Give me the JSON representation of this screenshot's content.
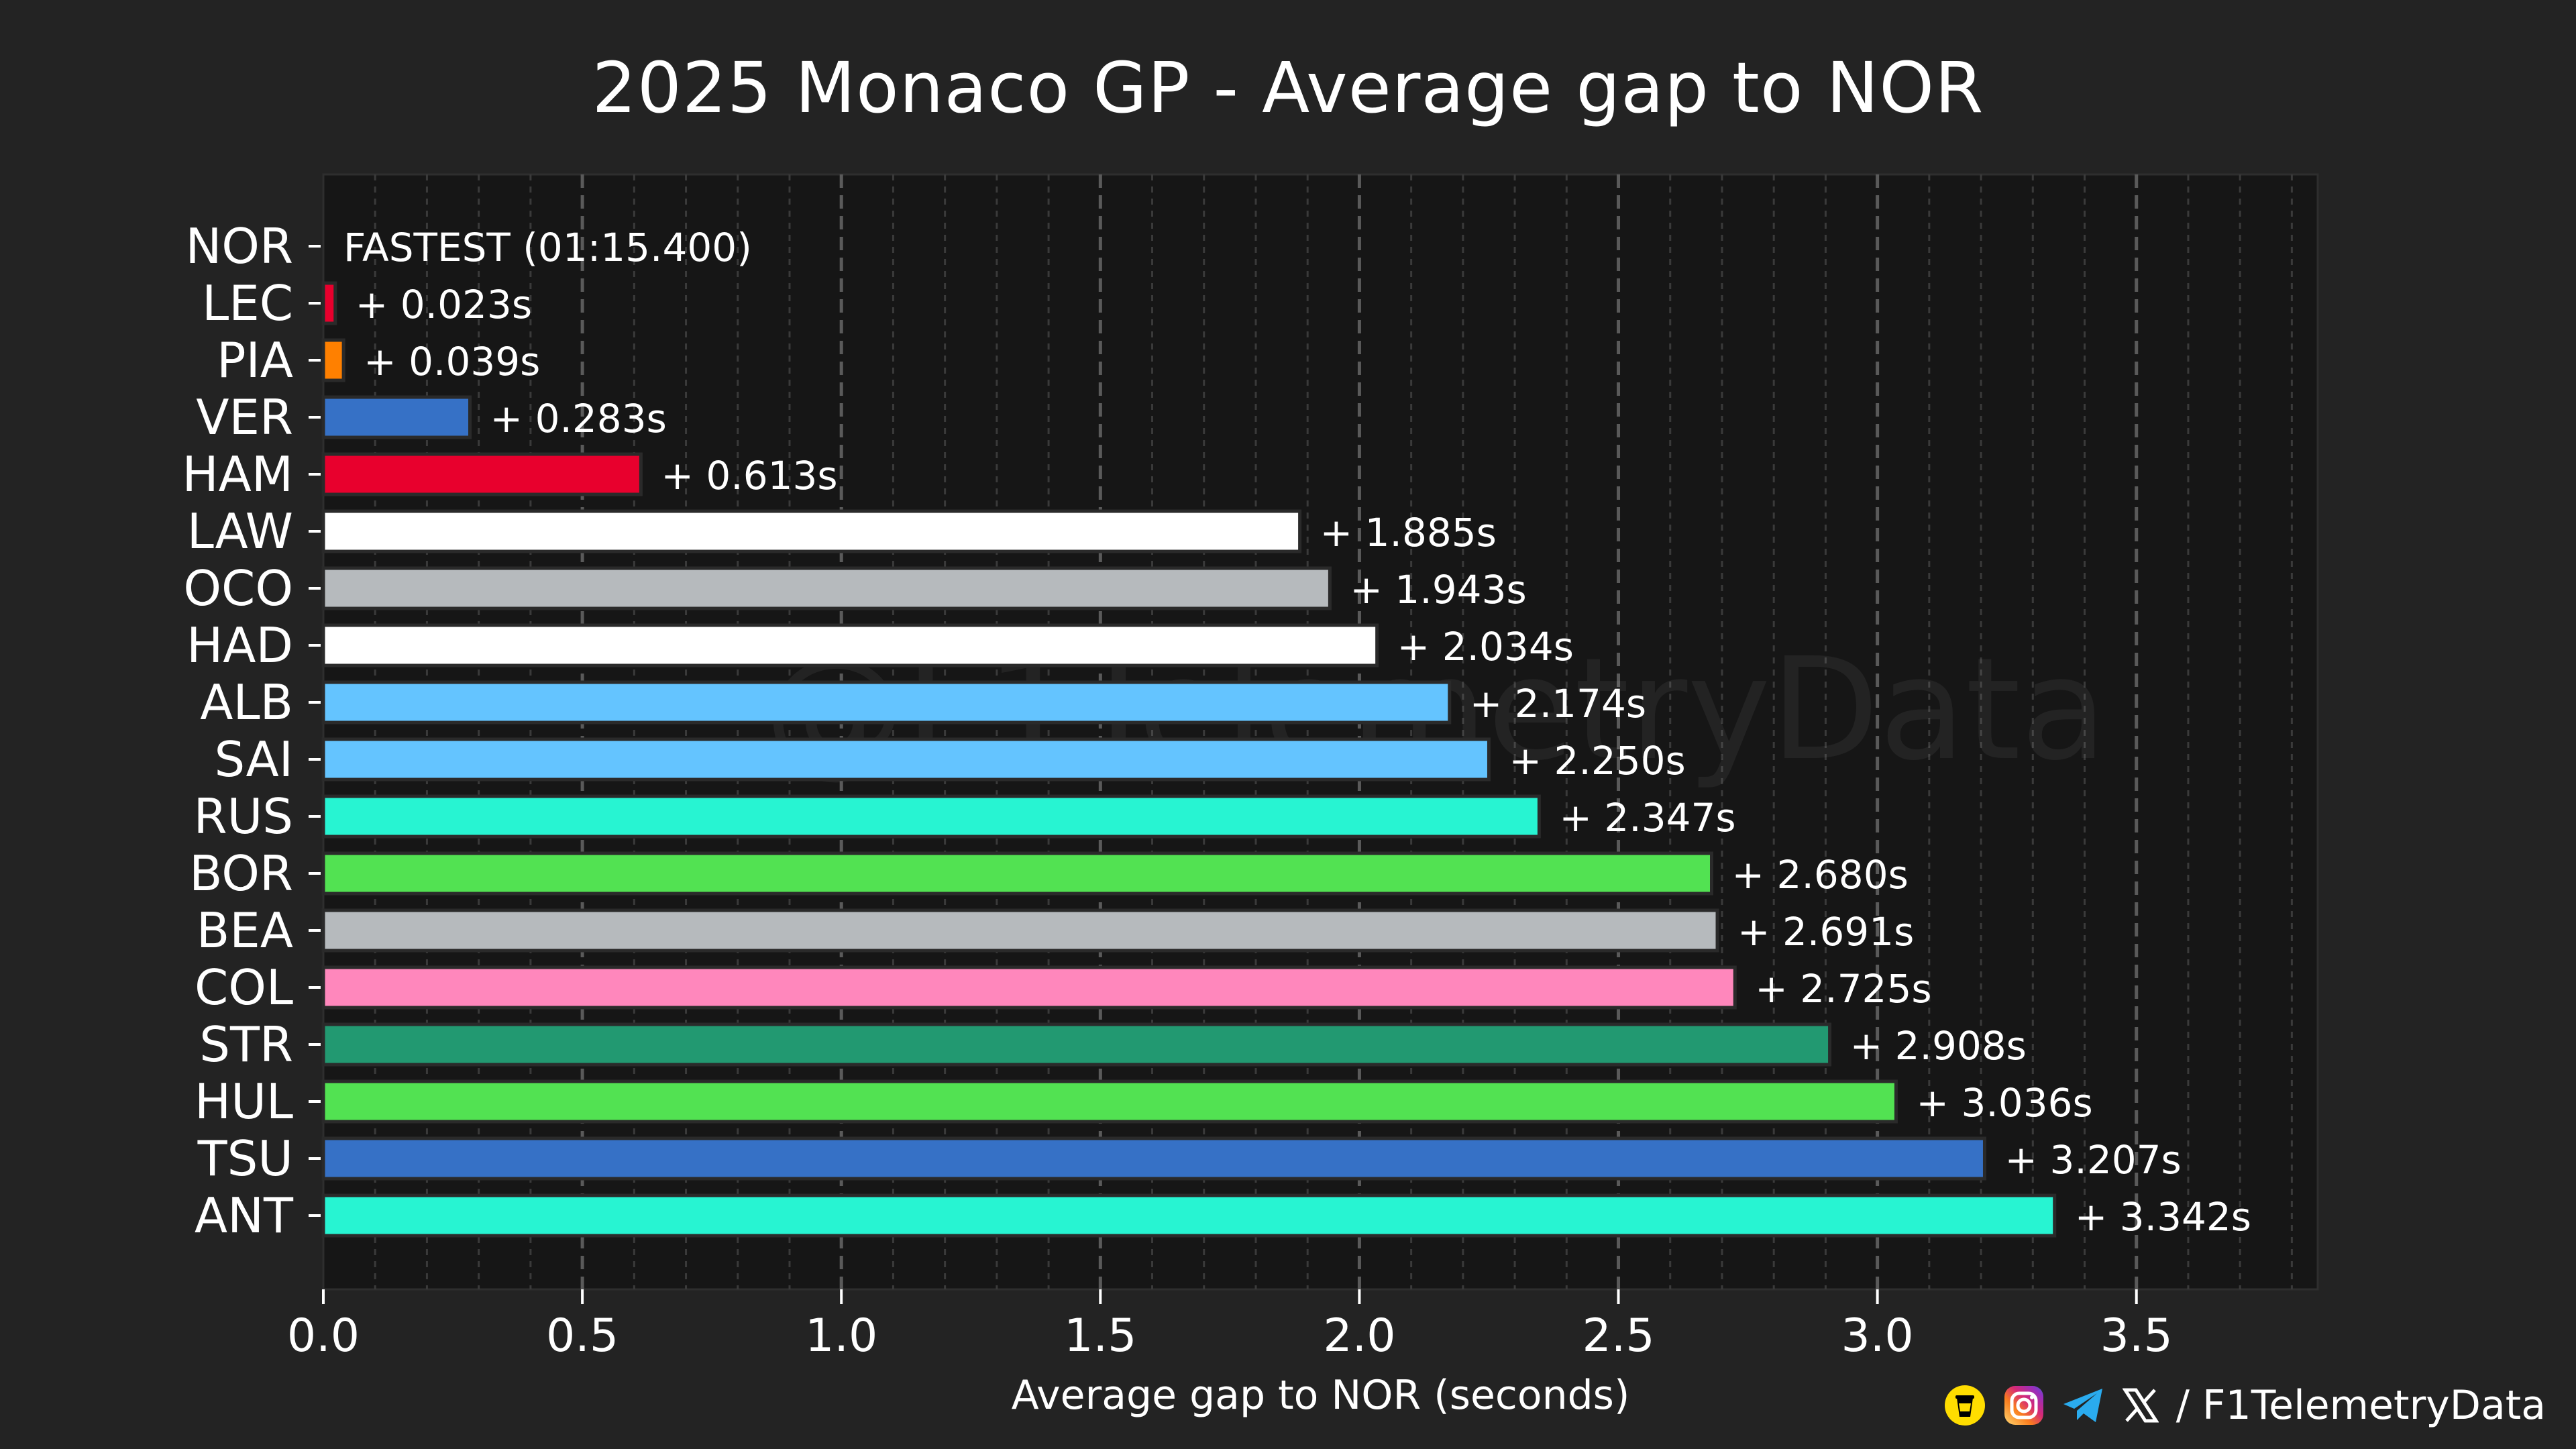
{
  "chart_data": {
    "type": "bar",
    "orientation": "horizontal",
    "title": "2025 Monaco GP - Average gap to NOR",
    "xlabel": "Average gap to NOR (seconds)",
    "ylabel": "",
    "xlim": [
      0,
      3.85
    ],
    "xticks": [
      "0.0",
      "0.5",
      "1.0",
      "1.5",
      "2.0",
      "2.5",
      "3.0",
      "3.5"
    ],
    "grid": true,
    "categories": [
      "NOR",
      "LEC",
      "PIA",
      "VER",
      "HAM",
      "LAW",
      "OCO",
      "HAD",
      "ALB",
      "SAI",
      "RUS",
      "BOR",
      "BEA",
      "COL",
      "STR",
      "HUL",
      "TSU",
      "ANT"
    ],
    "values": [
      0,
      0.023,
      0.039,
      0.283,
      0.613,
      1.885,
      1.943,
      2.034,
      2.174,
      2.25,
      2.347,
      2.68,
      2.691,
      2.725,
      2.908,
      3.036,
      3.207,
      3.342
    ],
    "labels": [
      "FASTEST (01:15.400)",
      "+ 0.023s",
      "+ 0.039s",
      "+ 0.283s",
      "+ 0.613s",
      "+ 1.885s",
      "+ 1.943s",
      "+ 2.034s",
      "+ 2.174s",
      "+ 2.250s",
      "+ 2.347s",
      "+ 2.680s",
      "+ 2.691s",
      "+ 2.725s",
      "+ 2.908s",
      "+ 3.036s",
      "+ 3.207s",
      "+ 3.342s"
    ],
    "colors": [
      "#FF8000",
      "#E8002D",
      "#FF8000",
      "#3671C6",
      "#E8002D",
      "#FFFFFF",
      "#B6BABD",
      "#FFFFFF",
      "#64C4FF",
      "#64C4FF",
      "#27F4D2",
      "#52E252",
      "#B6BABD",
      "#FF87BC",
      "#229971",
      "#52E252",
      "#3671C6",
      "#27F4D2"
    ]
  },
  "watermark": "@F1TelemetryData",
  "footer": {
    "text": "/ F1TelemetryData",
    "icons": [
      "buy-me-a-coffee-icon",
      "instagram-icon",
      "telegram-icon",
      "x-icon"
    ]
  },
  "colors": {
    "page_background": "#232323",
    "plot_background": "#161616",
    "grid": "#5a5a5a",
    "text": "#ffffff"
  }
}
